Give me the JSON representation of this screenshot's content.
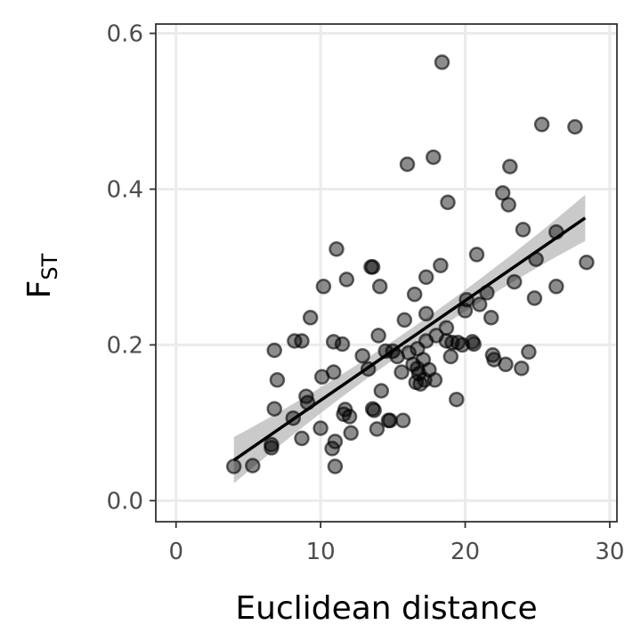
{
  "chart_data": {
    "type": "scatter",
    "title": "",
    "xlabel": "Euclidean distance",
    "ylabel_main": "F",
    "ylabel_sub": "ST",
    "xlim": [
      -1.4,
      30.5
    ],
    "ylim": [
      -0.027,
      0.612
    ],
    "x_ticks": [
      0,
      10,
      20,
      30
    ],
    "x_tick_labels": [
      "0",
      "10",
      "20",
      "30"
    ],
    "y_ticks": [
      0.0,
      0.2,
      0.4,
      0.6
    ],
    "y_tick_labels": [
      "0.0",
      "0.2",
      "0.4",
      "0.6"
    ],
    "grid": true,
    "point_color": "#000000",
    "point_alpha": 0.5,
    "fit": {
      "x": [
        4.0,
        28.3
      ],
      "y": [
        0.052,
        0.363
      ],
      "band_color": "#bdbdbd",
      "line_color": "#000000"
    },
    "points": [
      {
        "x": 4.0,
        "y": 0.044
      },
      {
        "x": 5.3,
        "y": 0.045
      },
      {
        "x": 6.6,
        "y": 0.068
      },
      {
        "x": 6.6,
        "y": 0.072
      },
      {
        "x": 6.8,
        "y": 0.193
      },
      {
        "x": 6.8,
        "y": 0.118
      },
      {
        "x": 7.0,
        "y": 0.155
      },
      {
        "x": 8.1,
        "y": 0.106
      },
      {
        "x": 8.2,
        "y": 0.205
      },
      {
        "x": 8.7,
        "y": 0.205
      },
      {
        "x": 8.7,
        "y": 0.08
      },
      {
        "x": 9.0,
        "y": 0.134
      },
      {
        "x": 9.1,
        "y": 0.126
      },
      {
        "x": 9.3,
        "y": 0.235
      },
      {
        "x": 10.0,
        "y": 0.093
      },
      {
        "x": 10.1,
        "y": 0.159
      },
      {
        "x": 10.2,
        "y": 0.275
      },
      {
        "x": 10.8,
        "y": 0.067
      },
      {
        "x": 10.9,
        "y": 0.165
      },
      {
        "x": 10.9,
        "y": 0.204
      },
      {
        "x": 11.0,
        "y": 0.076
      },
      {
        "x": 11.0,
        "y": 0.044
      },
      {
        "x": 11.1,
        "y": 0.323
      },
      {
        "x": 11.5,
        "y": 0.201
      },
      {
        "x": 11.6,
        "y": 0.111
      },
      {
        "x": 11.7,
        "y": 0.117
      },
      {
        "x": 11.8,
        "y": 0.284
      },
      {
        "x": 12.0,
        "y": 0.108
      },
      {
        "x": 12.1,
        "y": 0.087
      },
      {
        "x": 12.9,
        "y": 0.186
      },
      {
        "x": 13.3,
        "y": 0.169
      },
      {
        "x": 13.5,
        "y": 0.3
      },
      {
        "x": 13.6,
        "y": 0.3
      },
      {
        "x": 13.6,
        "y": 0.118
      },
      {
        "x": 13.7,
        "y": 0.116
      },
      {
        "x": 13.9,
        "y": 0.092
      },
      {
        "x": 14.0,
        "y": 0.212
      },
      {
        "x": 14.1,
        "y": 0.275
      },
      {
        "x": 14.2,
        "y": 0.141
      },
      {
        "x": 14.5,
        "y": 0.192
      },
      {
        "x": 14.7,
        "y": 0.103
      },
      {
        "x": 14.8,
        "y": 0.103
      },
      {
        "x": 15.0,
        "y": 0.192
      },
      {
        "x": 15.3,
        "y": 0.185
      },
      {
        "x": 15.6,
        "y": 0.165
      },
      {
        "x": 15.7,
        "y": 0.103
      },
      {
        "x": 15.8,
        "y": 0.232
      },
      {
        "x": 16.0,
        "y": 0.432
      },
      {
        "x": 16.1,
        "y": 0.19
      },
      {
        "x": 16.4,
        "y": 0.175
      },
      {
        "x": 16.5,
        "y": 0.265
      },
      {
        "x": 16.6,
        "y": 0.152
      },
      {
        "x": 16.7,
        "y": 0.195
      },
      {
        "x": 16.7,
        "y": 0.17
      },
      {
        "x": 16.8,
        "y": 0.163
      },
      {
        "x": 16.9,
        "y": 0.15
      },
      {
        "x": 17.1,
        "y": 0.181
      },
      {
        "x": 17.2,
        "y": 0.155
      },
      {
        "x": 17.3,
        "y": 0.287
      },
      {
        "x": 17.3,
        "y": 0.24
      },
      {
        "x": 17.3,
        "y": 0.205
      },
      {
        "x": 17.5,
        "y": 0.168
      },
      {
        "x": 17.8,
        "y": 0.441
      },
      {
        "x": 17.9,
        "y": 0.155
      },
      {
        "x": 18.0,
        "y": 0.212
      },
      {
        "x": 18.3,
        "y": 0.302
      },
      {
        "x": 18.4,
        "y": 0.563
      },
      {
        "x": 18.7,
        "y": 0.222
      },
      {
        "x": 18.7,
        "y": 0.205
      },
      {
        "x": 18.8,
        "y": 0.383
      },
      {
        "x": 19.0,
        "y": 0.185
      },
      {
        "x": 19.1,
        "y": 0.203
      },
      {
        "x": 19.4,
        "y": 0.13
      },
      {
        "x": 19.5,
        "y": 0.203
      },
      {
        "x": 19.8,
        "y": 0.2
      },
      {
        "x": 20.0,
        "y": 0.244
      },
      {
        "x": 20.1,
        "y": 0.258
      },
      {
        "x": 20.5,
        "y": 0.204
      },
      {
        "x": 20.6,
        "y": 0.201
      },
      {
        "x": 20.8,
        "y": 0.316
      },
      {
        "x": 21.0,
        "y": 0.252
      },
      {
        "x": 21.5,
        "y": 0.267
      },
      {
        "x": 21.8,
        "y": 0.235
      },
      {
        "x": 21.9,
        "y": 0.187
      },
      {
        "x": 22.0,
        "y": 0.181
      },
      {
        "x": 22.6,
        "y": 0.395
      },
      {
        "x": 22.8,
        "y": 0.175
      },
      {
        "x": 23.0,
        "y": 0.38
      },
      {
        "x": 23.1,
        "y": 0.429
      },
      {
        "x": 23.4,
        "y": 0.281
      },
      {
        "x": 23.9,
        "y": 0.17
      },
      {
        "x": 24.0,
        "y": 0.348
      },
      {
        "x": 24.4,
        "y": 0.191
      },
      {
        "x": 24.8,
        "y": 0.26
      },
      {
        "x": 24.9,
        "y": 0.31
      },
      {
        "x": 25.3,
        "y": 0.483
      },
      {
        "x": 26.3,
        "y": 0.345
      },
      {
        "x": 26.3,
        "y": 0.275
      },
      {
        "x": 27.6,
        "y": 0.48
      },
      {
        "x": 28.4,
        "y": 0.306
      }
    ]
  }
}
